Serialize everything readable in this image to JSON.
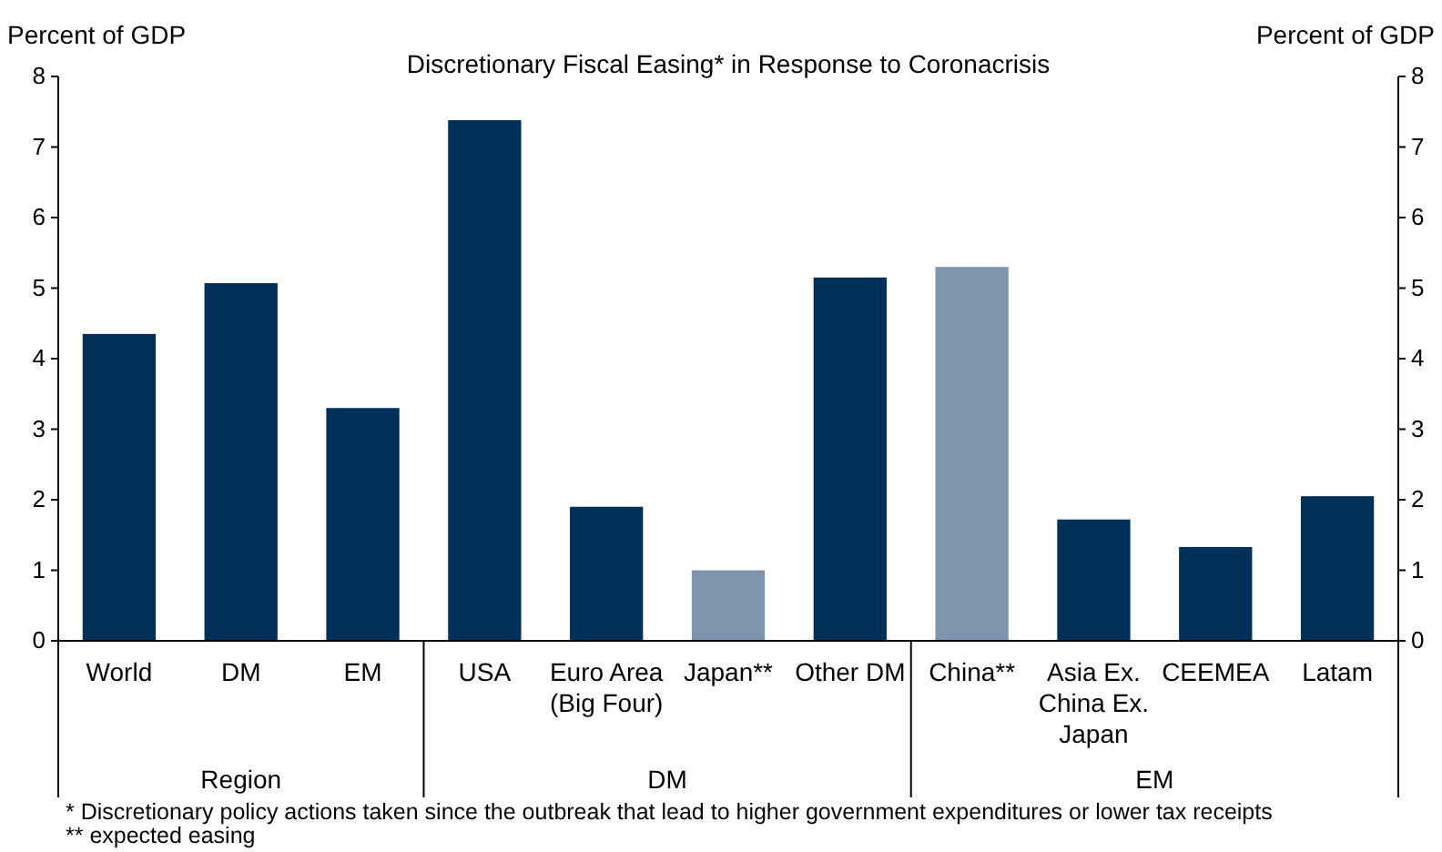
{
  "chart_data": {
    "type": "bar",
    "title": "Discretionary Fiscal Easing* in Response to Coronacrisis",
    "ylabel": "Percent of GDP",
    "y2label": "Percent of GDP",
    "categories": [
      "World",
      "DM",
      "EM",
      "USA",
      "Euro Area\n(Big Four)",
      "Japan**",
      "Other DM",
      "China**",
      "Asia Ex.\nChina Ex.\nJapan",
      "CEEMEA",
      "Latam"
    ],
    "values": [
      4.35,
      5.07,
      3.3,
      7.38,
      1.9,
      1.0,
      5.15,
      5.3,
      1.72,
      1.33,
      2.05
    ],
    "colors": [
      "#003057",
      "#003057",
      "#003057",
      "#003057",
      "#003057",
      "#7f95ab",
      "#003057",
      "#7f95ab",
      "#003057",
      "#003057",
      "#003057"
    ],
    "ylim": [
      0,
      8
    ],
    "yticks": [
      0,
      1,
      2,
      3,
      4,
      5,
      6,
      7,
      8
    ],
    "y2lim": [
      0,
      8
    ],
    "y2ticks": [
      0,
      1,
      2,
      3,
      4,
      5,
      6,
      7,
      8
    ],
    "annotations": [
      "Region",
      "DM",
      "EM",
      "* Discretionary policy actions taken since the outbreak that lead to higher government expenditures or lower tax receipts",
      "** expected easing"
    ],
    "grid": false
  }
}
